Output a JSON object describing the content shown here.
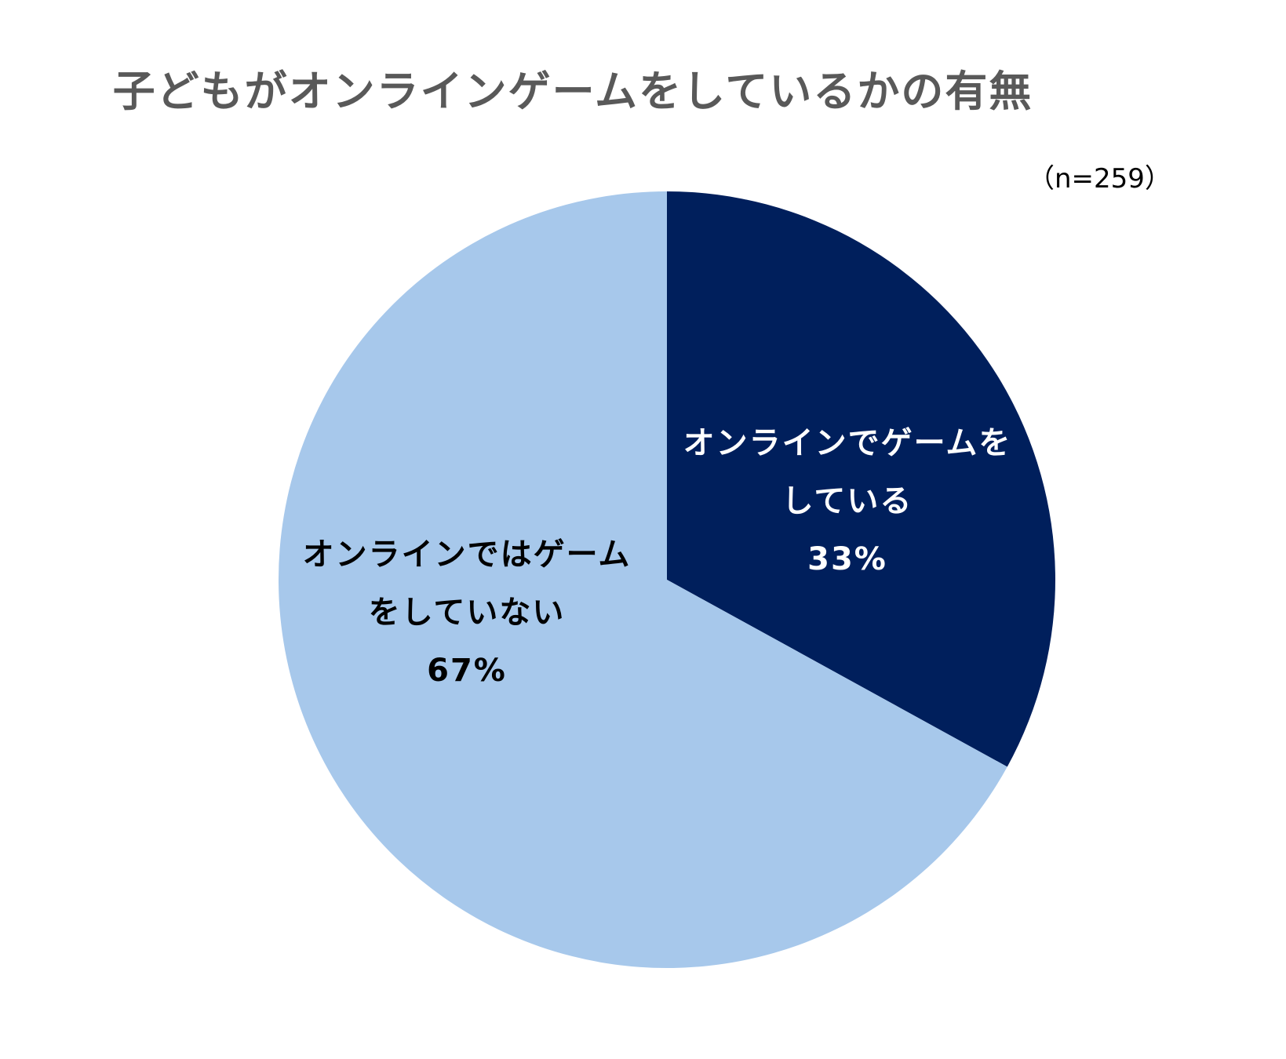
{
  "chart_data": {
    "type": "pie",
    "title": "子どもがオンラインゲームをしているかの有無",
    "sample_size": "（n=259）",
    "slices": [
      {
        "label_line1": "オンラインでゲームを",
        "label_line2": "している",
        "value": 33,
        "value_label": "33%",
        "color": "#001f5c"
      },
      {
        "label_line1": "オンラインではゲーム",
        "label_line2": "をしていない",
        "value": 67,
        "value_label": "67%",
        "color": "#a7c8eb"
      }
    ]
  }
}
